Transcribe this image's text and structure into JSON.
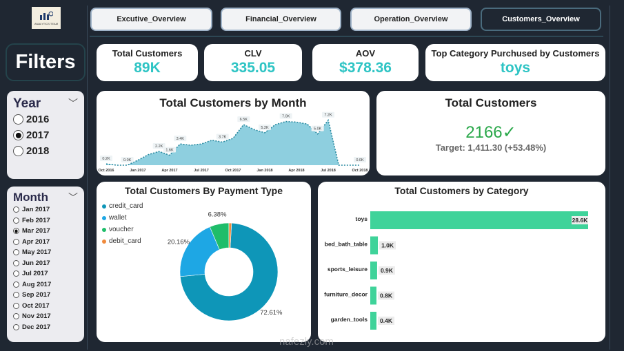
{
  "logo": {
    "text": "ANALYTICS TEAM"
  },
  "nav": [
    {
      "label": "Excutive_Overview",
      "active": false
    },
    {
      "label": "Financial_Overview",
      "active": false
    },
    {
      "label": "Operation_Overview",
      "active": false
    },
    {
      "label": "Customers_Overview",
      "active": true
    }
  ],
  "filters_title": "Filters",
  "year": {
    "title": "Year",
    "options": [
      {
        "label": "2016",
        "selected": false
      },
      {
        "label": "2017",
        "selected": true
      },
      {
        "label": "2018",
        "selected": false
      }
    ]
  },
  "month": {
    "title": "Month",
    "options": [
      {
        "label": "Jan 2017",
        "selected": false
      },
      {
        "label": "Feb 2017",
        "selected": false
      },
      {
        "label": "Mar 2017",
        "selected": true
      },
      {
        "label": "Apr 2017",
        "selected": false
      },
      {
        "label": "May 2017",
        "selected": false
      },
      {
        "label": "Jun 2017",
        "selected": false
      },
      {
        "label": "Jul 2017",
        "selected": false
      },
      {
        "label": "Aug 2017",
        "selected": false
      },
      {
        "label": "Sep 2017",
        "selected": false
      },
      {
        "label": "Oct 2017",
        "selected": false
      },
      {
        "label": "Nov 2017",
        "selected": false
      },
      {
        "label": "Dec 2017",
        "selected": false
      }
    ]
  },
  "kpis": [
    {
      "title": "Total Customers",
      "value": "89K"
    },
    {
      "title": "CLV",
      "value": "335.05"
    },
    {
      "title": "AOV",
      "value": "$378.36"
    },
    {
      "title": "Top Category Purchused by Customers",
      "value": "toys"
    }
  ],
  "target_card": {
    "title": "Total Customers",
    "value": "2166",
    "check": "✓",
    "target": "Target: 1,411.30 (+53.48%)",
    "color": "#2aa84a"
  },
  "watermark": {
    "text": "nafezly.com"
  },
  "chart_data": [
    {
      "type": "area",
      "title": "Total Customers by Month",
      "x": [
        "Oct 2016",
        "Nov 2016",
        "Dec 2016",
        "Jan 2017",
        "Feb 2017",
        "Mar 2017",
        "Apr 2017",
        "May 2017",
        "Jun 2017",
        "Jul 2017",
        "Aug 2017",
        "Sep 2017",
        "Oct 2017",
        "Nov 2017",
        "Dec 2017",
        "Jan 2018",
        "Feb 2018",
        "Mar 2018",
        "Apr 2018",
        "May 2018",
        "Jun 2018",
        "Jul 2018",
        "Aug 2018",
        "Sep 2018",
        "Oct 2018"
      ],
      "values": [
        0.2,
        0.0,
        0.0,
        0.8,
        1.7,
        2.2,
        1.6,
        3.4,
        3.2,
        3.4,
        4.0,
        3.7,
        4.3,
        6.5,
        5.7,
        5.2,
        6.5,
        7.0,
        6.9,
        6.6,
        5.0,
        7.2,
        0.0,
        0.0,
        0.0
      ],
      "data_labels": {
        "0": "0.2K",
        "2": "0.0K",
        "5": "2.2K",
        "6": "1.6K",
        "7": "3.4K",
        "11": "3.7K",
        "13": "6.5K",
        "15": "5.2K",
        "17": "7.0K",
        "20": "5.0K",
        "21": "7.2K",
        "24": "0.0K"
      },
      "tick_labels": [
        "Oct 2016",
        "Jan 2017",
        "Apr 2017",
        "Jul 2017",
        "Oct 2017",
        "Jan 2018",
        "Apr 2018",
        "Jul 2018",
        "Oct 2018"
      ],
      "color": "#8ecfdf",
      "unit": "K"
    },
    {
      "type": "pie",
      "title": "Total Customers By Payment Type",
      "slices": [
        {
          "name": "credit_card",
          "value": 72.61,
          "label": "72.61%",
          "color": "#0e96b8"
        },
        {
          "name": "wallet",
          "value": 20.16,
          "label": "20.16%",
          "color": "#1ea7e4"
        },
        {
          "name": "voucher",
          "value": 6.38,
          "label": "6.38%",
          "color": "#1fbd6a"
        },
        {
          "name": "debit_card",
          "value": 0.85,
          "label": "",
          "color": "#f08a3c"
        }
      ],
      "donut": true
    },
    {
      "type": "bar",
      "orientation": "horizontal",
      "title": "Total Customers by Category",
      "categories": [
        "toys",
        "bed_bath_table",
        "sports_leisure",
        "furniture_decor",
        "garden_tools"
      ],
      "values": [
        28.6,
        1.0,
        0.9,
        0.8,
        0.4
      ],
      "labels": [
        "28.6K",
        "1.0K",
        "0.9K",
        "0.8K",
        "0.4K"
      ],
      "color": "#3fd39a"
    }
  ]
}
